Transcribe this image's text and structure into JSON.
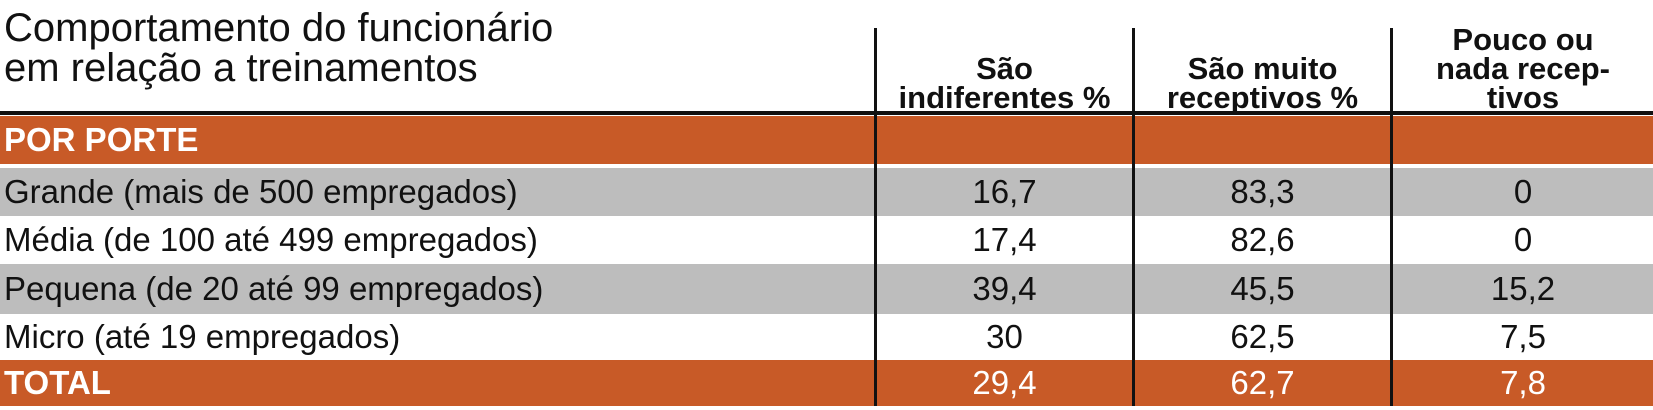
{
  "title": [
    "Comportamento do funcionário",
    "em relação a treinamentos"
  ],
  "table": {
    "columns": [
      [
        "São",
        "indiferentes %"
      ],
      [
        "São muito",
        "receptivos %"
      ],
      [
        "Pouco ou",
        "nada recep-",
        "tivos"
      ]
    ],
    "rows": [
      [
        "POR PORTE"
      ],
      [
        "Grande (mais de 500 empregados)",
        "16,7",
        "83,3",
        "0"
      ],
      [
        "Média (de 100 até 499 empregados)",
        "17,4",
        "82,6",
        "0"
      ],
      [
        "Pequena (de 20 até 99 empregados)",
        "39,4",
        "45,5",
        "15,2"
      ],
      [
        "Micro (até 19 empregados)",
        "30",
        "62,5",
        "7,5"
      ],
      [
        "TOTAL",
        "29,4",
        "62,7",
        "7,8"
      ]
    ]
  }
}
